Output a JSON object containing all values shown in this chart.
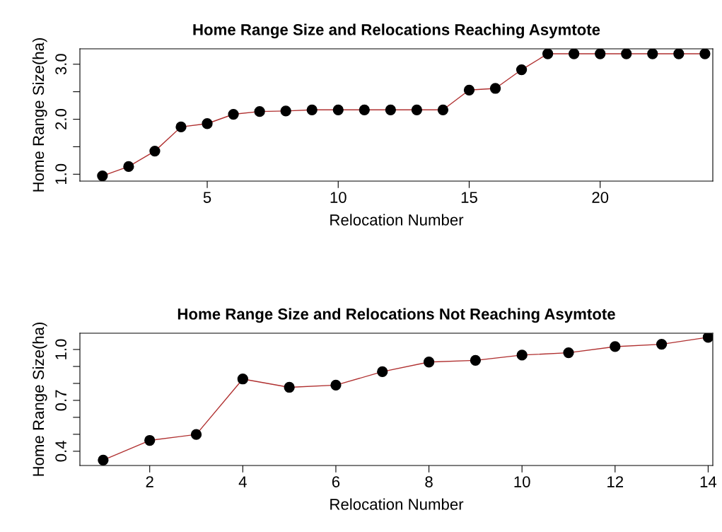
{
  "chart_data": [
    {
      "type": "line",
      "title": "Home Range Size and Relocations Reaching Asymtote",
      "xlabel": "Relocation Number",
      "ylabel": "Home Range Size(ha)",
      "x": [
        1,
        2,
        3,
        4,
        5,
        6,
        7,
        8,
        9,
        10,
        11,
        12,
        13,
        14,
        15,
        16,
        17,
        18,
        19,
        20,
        21,
        22,
        23,
        24
      ],
      "series": [
        {
          "color": "#b03030",
          "values": [
            0.97,
            1.14,
            1.42,
            1.86,
            1.92,
            2.09,
            2.14,
            2.15,
            2.17,
            2.17,
            2.17,
            2.17,
            2.17,
            2.17,
            2.53,
            2.56,
            2.9,
            3.19,
            3.19,
            3.19,
            3.19,
            3.19,
            3.19,
            3.19
          ]
        }
      ],
      "xlim": [
        0.14,
        24.3
      ],
      "xticks": [
        5,
        10,
        15,
        20
      ],
      "ylim": [
        0.875,
        3.28
      ],
      "yticks": [
        {
          "value": 1.0,
          "label": "1.0"
        },
        {
          "value": 1.5,
          "label": null
        },
        {
          "value": 2.0,
          "label": "2.0"
        },
        {
          "value": 2.5,
          "label": null
        },
        {
          "value": 3.0,
          "label": "3.0"
        }
      ],
      "marker": "circle",
      "line_style": "solid",
      "grid": false,
      "legend": false
    },
    {
      "type": "line",
      "title": "Home Range Size and Relocations Not Reaching Asymtote",
      "xlabel": "Relocation Number",
      "ylabel": "Home Range Size(ha)",
      "x": [
        1,
        2,
        3,
        4,
        5,
        6,
        7,
        8,
        9,
        10,
        11,
        12,
        13,
        14
      ],
      "series": [
        {
          "color": "#b03030",
          "values": [
            0.348,
            0.464,
            0.499,
            0.826,
            0.777,
            0.79,
            0.869,
            0.926,
            0.936,
            0.967,
            0.981,
            1.017,
            1.031,
            1.072
          ]
        }
      ],
      "xlim": [
        0.5,
        14.1
      ],
      "xticks": [
        2,
        4,
        6,
        8,
        10,
        12,
        14
      ],
      "ylim": [
        0.316,
        1.096
      ],
      "yticks": [
        {
          "value": 0.4,
          "label": "0.4"
        },
        {
          "value": 0.5,
          "label": null
        },
        {
          "value": 0.6,
          "label": null
        },
        {
          "value": 0.7,
          "label": "0.7"
        },
        {
          "value": 0.8,
          "label": null
        },
        {
          "value": 0.9,
          "label": null
        },
        {
          "value": 1.0,
          "label": "1.0"
        }
      ],
      "marker": "circle",
      "line_style": "solid",
      "grid": false,
      "legend": false
    }
  ]
}
